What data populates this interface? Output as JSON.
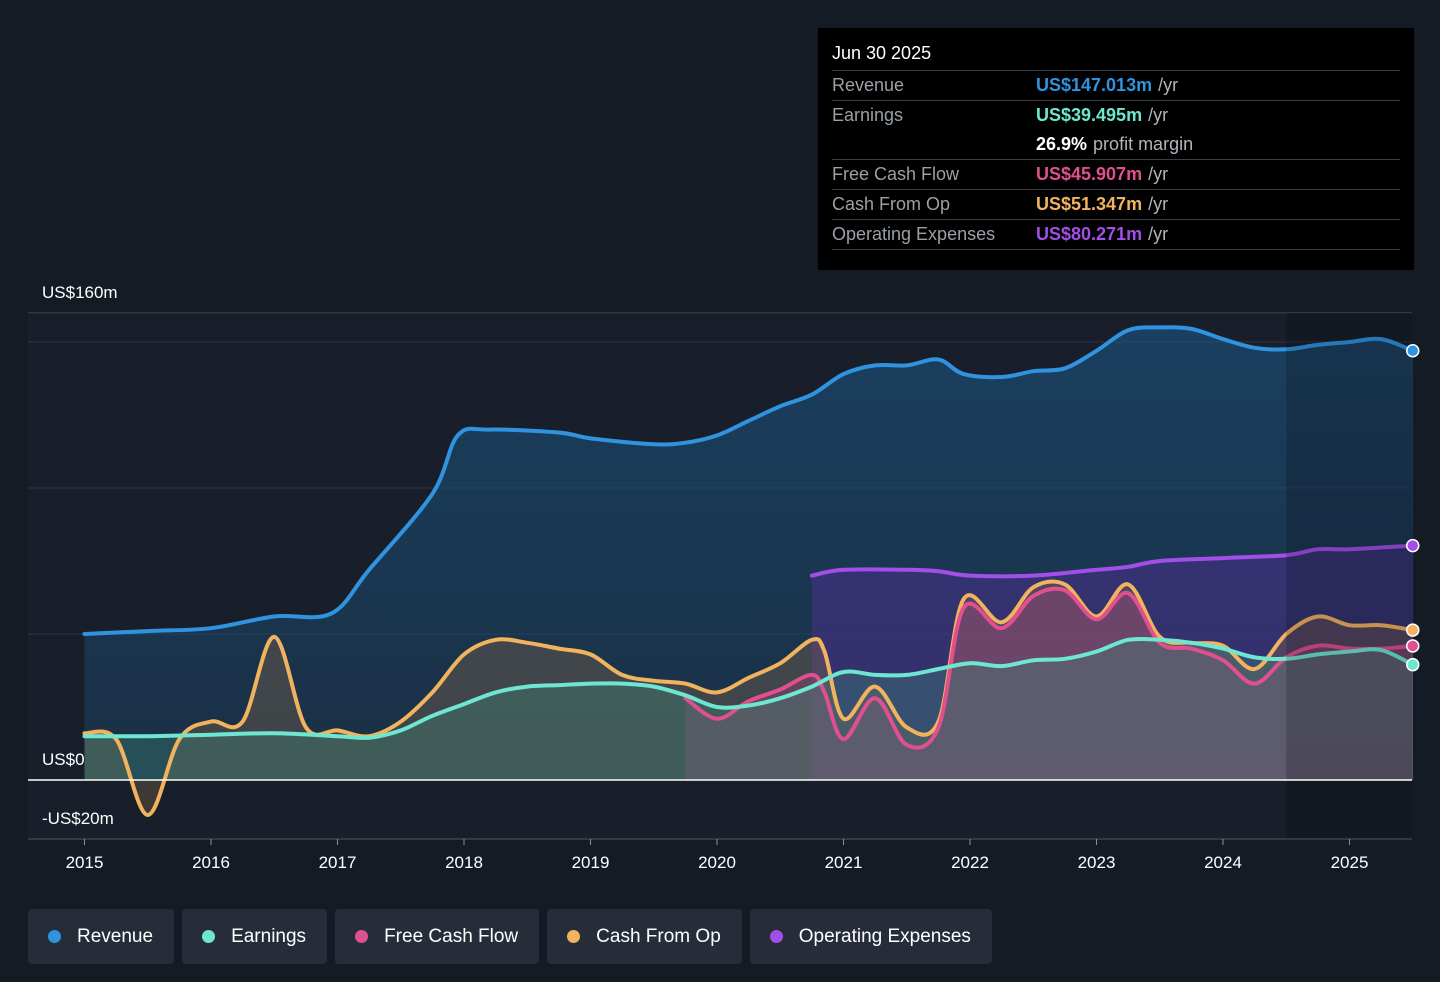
{
  "tooltip": {
    "date": "Jun 30 2025",
    "rows": [
      {
        "label": "Revenue",
        "value": "US$147.013m",
        "unit": "/yr",
        "color": "#2f93e0"
      },
      {
        "label": "Earnings",
        "value": "US$39.495m",
        "unit": "/yr",
        "color": "#6ee7d2"
      },
      {
        "label": "",
        "value": "26.9%",
        "unit": "profit margin",
        "color": "#ffffff"
      },
      {
        "label": "Free Cash Flow",
        "value": "US$45.907m",
        "unit": "/yr",
        "color": "#e0508f"
      },
      {
        "label": "Cash From Op",
        "value": "US$51.347m",
        "unit": "/yr",
        "color": "#f2b35e"
      },
      {
        "label": "Operating Expenses",
        "value": "US$80.271m",
        "unit": "/yr",
        "color": "#a24ee8"
      }
    ]
  },
  "legend": [
    {
      "label": "Revenue",
      "color": "#2f93e0"
    },
    {
      "label": "Earnings",
      "color": "#6ee7d2"
    },
    {
      "label": "Free Cash Flow",
      "color": "#e0508f"
    },
    {
      "label": "Cash From Op",
      "color": "#f2b35e"
    },
    {
      "label": "Operating Expenses",
      "color": "#a24ee8"
    }
  ],
  "chart_data": {
    "type": "area",
    "y_axis_labels": [
      "US$160m",
      "US$0",
      "-US$20m"
    ],
    "ylim": [
      -20,
      160
    ],
    "xlim": [
      2014.55,
      2025.5
    ],
    "x_ticks": [
      2015,
      2016,
      2017,
      2018,
      2019,
      2020,
      2021,
      2022,
      2023,
      2024,
      2025
    ],
    "forecast_shade_start": 2024.5,
    "grid": true,
    "series": [
      {
        "name": "Revenue",
        "color": "#2f93e0",
        "points": [
          [
            2015,
            50
          ],
          [
            2015.5,
            51
          ],
          [
            2016,
            52
          ],
          [
            2016.5,
            56
          ],
          [
            2016.95,
            57
          ],
          [
            2017.25,
            72
          ],
          [
            2017.75,
            98
          ],
          [
            2017.95,
            118
          ],
          [
            2018.2,
            120
          ],
          [
            2018.75,
            119
          ],
          [
            2019,
            117
          ],
          [
            2019.5,
            115
          ],
          [
            2019.75,
            115.5
          ],
          [
            2020,
            118
          ],
          [
            2020.25,
            123
          ],
          [
            2020.5,
            128
          ],
          [
            2020.75,
            132
          ],
          [
            2021,
            139
          ],
          [
            2021.25,
            142
          ],
          [
            2021.5,
            142
          ],
          [
            2021.75,
            144
          ],
          [
            2021.95,
            139
          ],
          [
            2022.25,
            138
          ],
          [
            2022.5,
            140
          ],
          [
            2022.75,
            141
          ],
          [
            2023,
            147
          ],
          [
            2023.25,
            154
          ],
          [
            2023.5,
            155
          ],
          [
            2023.75,
            154.5
          ],
          [
            2024,
            151
          ],
          [
            2024.25,
            148
          ],
          [
            2024.5,
            147.5
          ],
          [
            2024.75,
            149
          ],
          [
            2025,
            150
          ],
          [
            2025.25,
            151
          ],
          [
            2025.5,
            147.013
          ]
        ]
      },
      {
        "name": "Earnings",
        "color": "#6ee7d2",
        "points": [
          [
            2015,
            15
          ],
          [
            2015.5,
            15
          ],
          [
            2016,
            15.5
          ],
          [
            2016.5,
            16
          ],
          [
            2017,
            15
          ],
          [
            2017.25,
            14.5
          ],
          [
            2017.5,
            17
          ],
          [
            2017.75,
            22
          ],
          [
            2018,
            26
          ],
          [
            2018.25,
            30
          ],
          [
            2018.5,
            32
          ],
          [
            2018.75,
            32.5
          ],
          [
            2019,
            33
          ],
          [
            2019.25,
            33
          ],
          [
            2019.5,
            32
          ],
          [
            2019.75,
            29
          ],
          [
            2020,
            25
          ],
          [
            2020.25,
            25.5
          ],
          [
            2020.5,
            28
          ],
          [
            2020.75,
            32
          ],
          [
            2021,
            37
          ],
          [
            2021.25,
            36
          ],
          [
            2021.5,
            36
          ],
          [
            2021.75,
            38
          ],
          [
            2022,
            40
          ],
          [
            2022.25,
            39
          ],
          [
            2022.5,
            41
          ],
          [
            2022.75,
            41.5
          ],
          [
            2023,
            44
          ],
          [
            2023.25,
            48
          ],
          [
            2023.5,
            48
          ],
          [
            2023.75,
            47
          ],
          [
            2024,
            45
          ],
          [
            2024.25,
            42
          ],
          [
            2024.5,
            41.5
          ],
          [
            2024.75,
            43
          ],
          [
            2025,
            44
          ],
          [
            2025.25,
            44.5
          ],
          [
            2025.5,
            39.495
          ]
        ]
      },
      {
        "name": "Free Cash Flow",
        "color": "#e0508f",
        "points": [
          [
            2019.75,
            28
          ],
          [
            2020,
            21
          ],
          [
            2020.25,
            27
          ],
          [
            2020.5,
            31
          ],
          [
            2020.75,
            36
          ],
          [
            2020.85,
            30
          ],
          [
            2021,
            14
          ],
          [
            2021.25,
            28
          ],
          [
            2021.5,
            12
          ],
          [
            2021.75,
            18
          ],
          [
            2021.95,
            59
          ],
          [
            2022.25,
            52
          ],
          [
            2022.5,
            63
          ],
          [
            2022.75,
            65
          ],
          [
            2023,
            55
          ],
          [
            2023.25,
            64
          ],
          [
            2023.5,
            47
          ],
          [
            2023.75,
            45
          ],
          [
            2024,
            41
          ],
          [
            2024.25,
            33
          ],
          [
            2024.5,
            42
          ],
          [
            2024.75,
            46
          ],
          [
            2025,
            45
          ],
          [
            2025.25,
            45
          ],
          [
            2025.5,
            45.907
          ]
        ]
      },
      {
        "name": "Cash From Op",
        "color": "#f2b35e",
        "points": [
          [
            2015,
            16
          ],
          [
            2015.25,
            14
          ],
          [
            2015.5,
            -12
          ],
          [
            2015.75,
            14
          ],
          [
            2016,
            20
          ],
          [
            2016.25,
            20
          ],
          [
            2016.5,
            49
          ],
          [
            2016.75,
            18
          ],
          [
            2017,
            17
          ],
          [
            2017.25,
            15
          ],
          [
            2017.5,
            20
          ],
          [
            2017.75,
            30
          ],
          [
            2018,
            43
          ],
          [
            2018.25,
            48
          ],
          [
            2018.5,
            47
          ],
          [
            2018.75,
            45
          ],
          [
            2019,
            43
          ],
          [
            2019.25,
            36
          ],
          [
            2019.5,
            34
          ],
          [
            2019.75,
            33
          ],
          [
            2020,
            30
          ],
          [
            2020.25,
            35
          ],
          [
            2020.5,
            40
          ],
          [
            2020.75,
            48
          ],
          [
            2020.85,
            44
          ],
          [
            2021,
            21
          ],
          [
            2021.25,
            32
          ],
          [
            2021.5,
            18
          ],
          [
            2021.75,
            20
          ],
          [
            2021.95,
            62
          ],
          [
            2022.25,
            54
          ],
          [
            2022.5,
            66
          ],
          [
            2022.75,
            67
          ],
          [
            2023,
            56
          ],
          [
            2023.25,
            67
          ],
          [
            2023.5,
            49
          ],
          [
            2023.75,
            47
          ],
          [
            2024,
            46
          ],
          [
            2024.25,
            38
          ],
          [
            2024.5,
            50
          ],
          [
            2024.75,
            56
          ],
          [
            2025,
            53
          ],
          [
            2025.25,
            53
          ],
          [
            2025.5,
            51.347
          ]
        ]
      },
      {
        "name": "Operating Expenses",
        "color": "#a24ee8",
        "points": [
          [
            2020.75,
            70
          ],
          [
            2021,
            72
          ],
          [
            2021.5,
            72
          ],
          [
            2021.75,
            71.5
          ],
          [
            2022,
            70
          ],
          [
            2022.5,
            70
          ],
          [
            2023,
            72
          ],
          [
            2023.25,
            73
          ],
          [
            2023.5,
            75
          ],
          [
            2024,
            76
          ],
          [
            2024.5,
            77
          ],
          [
            2024.75,
            79
          ],
          [
            2025,
            79
          ],
          [
            2025.5,
            80.271
          ]
        ]
      }
    ]
  }
}
